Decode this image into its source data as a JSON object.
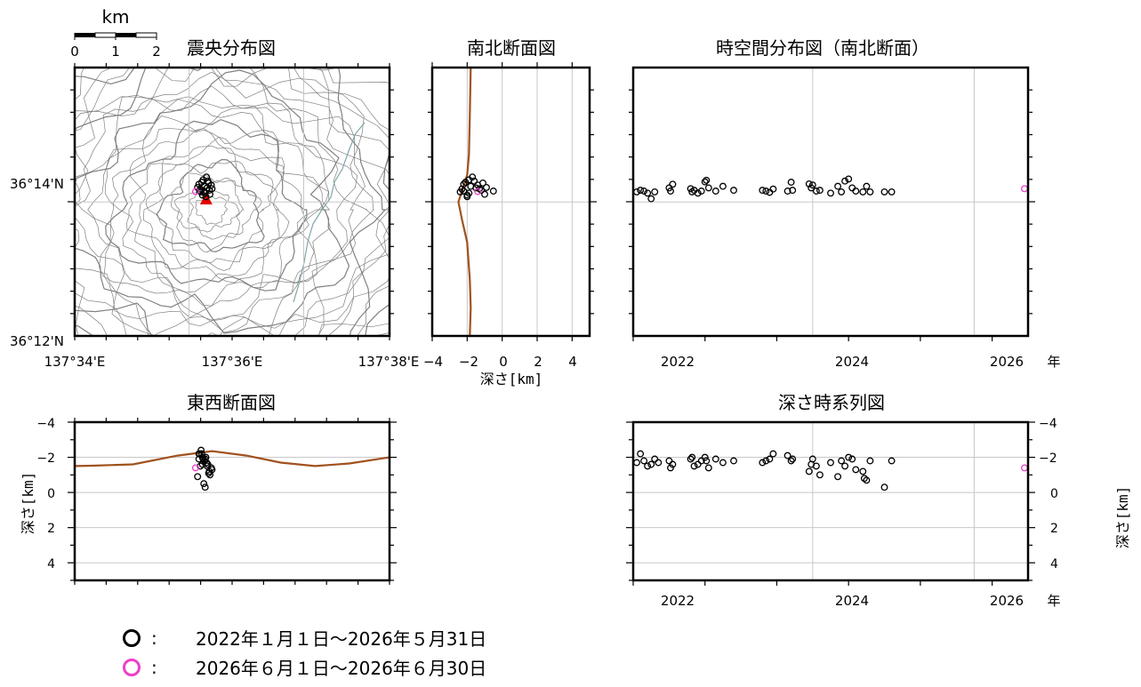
{
  "colors": {
    "topo": "#808080",
    "grid": "#c8c8c8",
    "terrain_profile": "#a0521d",
    "event_old": "#000000",
    "event_new": "#ee3ec8",
    "volcano_marker": "#e00000"
  },
  "scale_bar": {
    "unit": "km",
    "ticks": [
      "0",
      "1",
      "2"
    ]
  },
  "year_unit": "年",
  "depth_label": "深さ[km]",
  "legend": [
    {
      "symbol": "open-circle",
      "color": "#000000",
      "colon": ":",
      "text": "2022年１月１日〜2026年５月31日"
    },
    {
      "symbol": "open-circle",
      "color": "#ee3ec8",
      "colon": ":",
      "text": "2026年６月１日〜2026年６月30日"
    }
  ],
  "chart_data": [
    {
      "type": "scatter",
      "title": "震央分布図",
      "xlabel": "",
      "ylabel": "",
      "xlim": [
        137.55,
        137.6417
      ],
      "ylim": [
        36.2,
        36.2667
      ],
      "x_ticks": [
        "137°34'E",
        "137°36'E",
        "137°38'E"
      ],
      "y_ticks": [
        "36°12'N",
        "36°14'N"
      ],
      "grid": true,
      "background": "topographic contour map",
      "volcano_marker": {
        "lon": 137.5883,
        "lat": 36.234
      },
      "series": [
        {
          "color": "#000000",
          "points": [
            [
              137.587,
              36.2382
            ],
            [
              137.5878,
              36.2372
            ],
            [
              137.5888,
              36.2385
            ],
            [
              137.5866,
              36.2365
            ],
            [
              137.5892,
              36.2362
            ],
            [
              137.588,
              36.2355
            ],
            [
              137.5872,
              36.235
            ],
            [
              137.5898,
              36.2375
            ],
            [
              137.5862,
              36.2377
            ],
            [
              137.5884,
              36.2395
            ],
            [
              137.5876,
              36.236
            ],
            [
              137.5894,
              36.2352
            ],
            [
              137.5868,
              36.2358
            ],
            [
              137.5886,
              36.2368
            ],
            [
              137.5858,
              36.2369
            ],
            [
              137.59,
              36.2366
            ],
            [
              137.5874,
              36.2388
            ],
            [
              137.5882,
              36.2346
            ],
            [
              137.589,
              36.238
            ],
            [
              137.5864,
              36.236
            ]
          ]
        },
        {
          "color": "#ee3ec8",
          "points": [
            [
              137.5852,
              36.2359
            ]
          ]
        }
      ]
    },
    {
      "type": "scatter",
      "title": "南北断面図",
      "xlabel": "深さ[km]",
      "ylabel": "",
      "xlim": [
        -4,
        5
      ],
      "ylim": [
        36.2,
        36.2667
      ],
      "x_ticks": [
        "−4",
        "−2",
        "0",
        "2",
        "4"
      ],
      "grid": true,
      "terrain_profile": [
        [
          -1.8,
          36.2667
        ],
        [
          -1.85,
          36.255
        ],
        [
          -1.9,
          36.245
        ],
        [
          -2.0,
          36.24
        ],
        [
          -2.3,
          36.236
        ],
        [
          -2.5,
          36.2333
        ],
        [
          -2.3,
          36.229
        ],
        [
          -2.0,
          36.2233
        ],
        [
          -1.85,
          36.214
        ],
        [
          -1.8,
          36.207
        ],
        [
          -1.85,
          36.2
        ]
      ],
      "series": [
        {
          "color": "#000000",
          "points": [
            [
              -2.1,
              36.2382
            ],
            [
              -1.8,
              36.2372
            ],
            [
              -1.6,
              36.2385
            ],
            [
              -2.3,
              36.2365
            ],
            [
              -1.2,
              36.2362
            ],
            [
              -1.9,
              36.2355
            ],
            [
              -2.0,
              36.235
            ],
            [
              -1.4,
              36.2375
            ],
            [
              -2.2,
              36.2377
            ],
            [
              -1.7,
              36.2395
            ],
            [
              -0.5,
              36.236
            ],
            [
              -1.0,
              36.2352
            ],
            [
              -2.4,
              36.2358
            ],
            [
              -1.5,
              36.2368
            ],
            [
              -0.9,
              36.2369
            ],
            [
              -1.3,
              36.2366
            ],
            [
              -1.9,
              36.2388
            ],
            [
              -2.0,
              36.2346
            ],
            [
              -1.1,
              36.238
            ],
            [
              -2.2,
              36.236
            ]
          ]
        },
        {
          "color": "#ee3ec8",
          "points": [
            [
              -1.4,
              36.2359
            ]
          ]
        }
      ]
    },
    {
      "type": "scatter",
      "title": "時空間分布図（南北断面）",
      "xlabel": "年",
      "ylabel": "",
      "xlim": [
        2021.0,
        2026.5
      ],
      "ylim": [
        36.2,
        36.2667
      ],
      "x_ticks": [
        "2022",
        "2024",
        "2026"
      ],
      "grid": true,
      "series": [
        {
          "color": "#000000",
          "points": [
            [
              2021.05,
              36.2358
            ],
            [
              2021.1,
              36.2362
            ],
            [
              2021.15,
              36.236
            ],
            [
              2021.2,
              36.2355
            ],
            [
              2021.25,
              36.2341
            ],
            [
              2021.3,
              36.2358
            ],
            [
              2021.5,
              36.2368
            ],
            [
              2021.52,
              36.236
            ],
            [
              2021.55,
              36.2377
            ],
            [
              2021.8,
              36.2366
            ],
            [
              2021.82,
              36.2358
            ],
            [
              2021.85,
              36.2362
            ],
            [
              2021.9,
              36.2355
            ],
            [
              2021.95,
              36.236
            ],
            [
              2022.0,
              36.2383
            ],
            [
              2022.02,
              36.2387
            ],
            [
              2022.05,
              36.2368
            ],
            [
              2022.15,
              36.236
            ],
            [
              2022.25,
              36.2372
            ],
            [
              2022.4,
              36.2362
            ],
            [
              2022.8,
              36.2362
            ],
            [
              2022.85,
              36.236
            ],
            [
              2022.9,
              36.2357
            ],
            [
              2022.95,
              36.2365
            ],
            [
              2023.15,
              36.236
            ],
            [
              2023.2,
              36.2382
            ],
            [
              2023.22,
              36.2362
            ],
            [
              2023.45,
              36.2378
            ],
            [
              2023.48,
              36.2368
            ],
            [
              2023.5,
              36.2375
            ],
            [
              2023.55,
              36.236
            ],
            [
              2023.6,
              36.2362
            ],
            [
              2023.75,
              36.2355
            ],
            [
              2023.85,
              36.2372
            ],
            [
              2023.9,
              36.2358
            ],
            [
              2023.95,
              36.2385
            ],
            [
              2024.0,
              36.239
            ],
            [
              2024.05,
              36.2368
            ],
            [
              2024.1,
              36.236
            ],
            [
              2024.2,
              36.2358
            ],
            [
              2024.25,
              36.2372
            ],
            [
              2024.3,
              36.2358
            ],
            [
              2024.5,
              36.2358
            ],
            [
              2024.6,
              36.2358
            ]
          ]
        },
        {
          "color": "#ee3ec8",
          "points": [
            [
              2026.45,
              36.2366
            ]
          ]
        }
      ]
    },
    {
      "type": "scatter",
      "title": "東西断面図",
      "xlabel": "",
      "ylabel": "深さ[km]",
      "xlim": [
        137.55,
        137.6417
      ],
      "ylim": [
        -4,
        5
      ],
      "y_ticks": [
        "−4",
        "−2",
        "0",
        "2",
        "4"
      ],
      "grid": true,
      "terrain_profile": [
        [
          137.55,
          -1.5
        ],
        [
          137.555,
          -1.52
        ],
        [
          137.567,
          -1.6
        ],
        [
          137.58,
          -2.1
        ],
        [
          137.59,
          -2.35
        ],
        [
          137.6,
          -2.1
        ],
        [
          137.61,
          -1.7
        ],
        [
          137.62,
          -1.5
        ],
        [
          137.63,
          -1.65
        ],
        [
          137.6417,
          -2.0
        ]
      ],
      "series": [
        {
          "color": "#000000",
          "points": [
            [
              137.5862,
              -1.9
            ],
            [
              137.587,
              -2.2
            ],
            [
              137.5878,
              -1.8
            ],
            [
              137.5888,
              -1.6
            ],
            [
              137.5866,
              -1.5
            ],
            [
              137.5892,
              -1.2
            ],
            [
              137.588,
              -1.9
            ],
            [
              137.5872,
              -2.0
            ],
            [
              137.5898,
              -1.4
            ],
            [
              137.5862,
              -2.2
            ],
            [
              137.5884,
              -1.7
            ],
            [
              137.5876,
              -0.5
            ],
            [
              137.5894,
              -1.0
            ],
            [
              137.5868,
              -2.4
            ],
            [
              137.5886,
              -1.5
            ],
            [
              137.5858,
              -0.9
            ],
            [
              137.59,
              -1.3
            ],
            [
              137.5874,
              -1.9
            ],
            [
              137.5882,
              -2.0
            ],
            [
              137.589,
              -1.1
            ],
            [
              137.5864,
              -2.2
            ],
            [
              137.588,
              -0.3
            ],
            [
              137.5872,
              -1.6
            ]
          ]
        },
        {
          "color": "#ee3ec8",
          "points": [
            [
              137.5852,
              -1.4
            ]
          ]
        }
      ]
    },
    {
      "type": "scatter",
      "title": "深さ時系列図",
      "xlabel": "年",
      "ylabel": "深さ[km]",
      "xlim": [
        2021.0,
        2026.5
      ],
      "ylim": [
        -4,
        5
      ],
      "x_ticks": [
        "2022",
        "2024",
        "2026"
      ],
      "y_ticks": [
        "−4",
        "−2",
        "0",
        "2",
        "4"
      ],
      "grid": true,
      "series": [
        {
          "color": "#000000",
          "points": [
            [
              2021.05,
              -1.7
            ],
            [
              2021.1,
              -2.2
            ],
            [
              2021.15,
              -1.8
            ],
            [
              2021.2,
              -1.5
            ],
            [
              2021.25,
              -1.6
            ],
            [
              2021.3,
              -1.9
            ],
            [
              2021.35,
              -1.7
            ],
            [
              2021.5,
              -1.8
            ],
            [
              2021.52,
              -1.4
            ],
            [
              2021.55,
              -1.6
            ],
            [
              2021.8,
              -1.9
            ],
            [
              2021.82,
              -2.0
            ],
            [
              2021.85,
              -1.5
            ],
            [
              2021.9,
              -1.6
            ],
            [
              2021.95,
              -1.8
            ],
            [
              2022.0,
              -2.0
            ],
            [
              2022.02,
              -1.8
            ],
            [
              2022.05,
              -1.4
            ],
            [
              2022.15,
              -1.9
            ],
            [
              2022.25,
              -1.7
            ],
            [
              2022.4,
              -1.8
            ],
            [
              2022.8,
              -1.7
            ],
            [
              2022.85,
              -1.8
            ],
            [
              2022.9,
              -1.9
            ],
            [
              2022.95,
              -2.2
            ],
            [
              2023.15,
              -2.1
            ],
            [
              2023.2,
              -1.8
            ],
            [
              2023.22,
              -1.9
            ],
            [
              2023.45,
              -1.2
            ],
            [
              2023.48,
              -1.6
            ],
            [
              2023.5,
              -1.9
            ],
            [
              2023.55,
              -1.5
            ],
            [
              2023.6,
              -1.0
            ],
            [
              2023.75,
              -1.7
            ],
            [
              2023.85,
              -0.9
            ],
            [
              2023.9,
              -1.8
            ],
            [
              2023.95,
              -1.5
            ],
            [
              2024.0,
              -2.0
            ],
            [
              2024.05,
              -1.9
            ],
            [
              2024.1,
              -1.3
            ],
            [
              2024.2,
              -1.2
            ],
            [
              2024.22,
              -0.8
            ],
            [
              2024.25,
              -0.7
            ],
            [
              2024.3,
              -1.8
            ],
            [
              2024.5,
              -0.3
            ],
            [
              2024.6,
              -1.8
            ]
          ]
        },
        {
          "color": "#ee3ec8",
          "points": [
            [
              2026.45,
              -1.4
            ]
          ]
        }
      ]
    }
  ]
}
